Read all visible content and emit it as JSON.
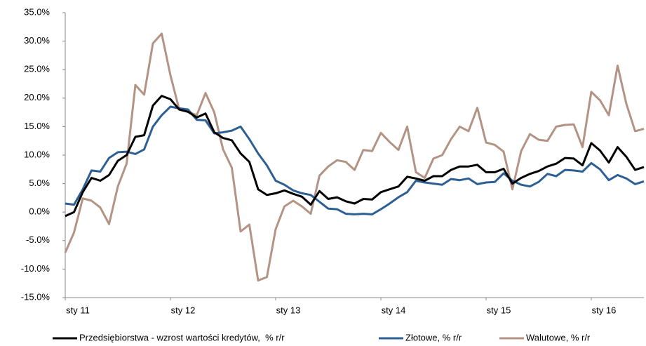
{
  "chart_data": {
    "type": "line",
    "categories": [
      "sty 11",
      null,
      null,
      null,
      null,
      null,
      null,
      null,
      null,
      null,
      null,
      null,
      "sty 12",
      null,
      null,
      null,
      null,
      null,
      null,
      null,
      null,
      null,
      null,
      null,
      "sty 13",
      null,
      null,
      null,
      null,
      null,
      null,
      null,
      null,
      null,
      null,
      null,
      "sty 14",
      null,
      null,
      null,
      null,
      null,
      null,
      null,
      null,
      null,
      null,
      null,
      "sty 15",
      null,
      null,
      null,
      null,
      null,
      null,
      null,
      null,
      null,
      null,
      null,
      "sty 16",
      null,
      null,
      null,
      null,
      null,
      null
    ],
    "series": [
      {
        "name": "Przedsiębiorstwa - wzrost wartości kredytów,  % r/r",
        "color": "#000000",
        "values": [
          -0.7,
          0,
          3.5,
          6,
          5.5,
          6.5,
          9,
          10,
          13.2,
          13.5,
          18.7,
          20.4,
          19.8,
          18,
          17.6,
          16.6,
          17.3,
          14,
          13,
          12.6,
          10.3,
          8.8,
          4,
          3,
          3.3,
          3.8,
          3.2,
          2.7,
          1.3,
          3.7,
          2.3,
          2.6,
          1.9,
          1.5,
          2.3,
          2.2,
          3.5,
          4,
          4.5,
          6.2,
          5.9,
          5.5,
          6.3,
          6.3,
          7.4,
          8,
          8,
          8.3,
          7,
          7,
          7.6,
          5,
          6,
          6.7,
          7.2,
          8,
          8.5,
          9.5,
          9.4,
          8.2,
          12.1,
          10.8,
          8.7,
          11.4,
          9.7,
          7.4,
          7.9
        ]
      },
      {
        "name": "Złotowe, % r/r",
        "color": "#2e5f94",
        "values": [
          1.5,
          1.3,
          4,
          7.3,
          7.1,
          9.5,
          10.5,
          10.6,
          10.2,
          11,
          15,
          17,
          18.5,
          18.2,
          18,
          16.2,
          16.1,
          13.8,
          14,
          14.3,
          15,
          12.8,
          10.3,
          8.2,
          5.5,
          4.8,
          3.8,
          3.3,
          3,
          1.8,
          0.6,
          0.5,
          -0.3,
          -0.4,
          -0.3,
          -0.4,
          0.5,
          1.5,
          2.6,
          3.5,
          5.5,
          5.2,
          5,
          4.8,
          5.8,
          5.6,
          5.9,
          4.9,
          5.2,
          5.3,
          6.8,
          5.5,
          4.8,
          4.5,
          5.3,
          6.7,
          6.3,
          7.4,
          7.3,
          7.1,
          8.6,
          7.5,
          5.6,
          6.5,
          5.9,
          4.9,
          5.4
        ]
      },
      {
        "name": "Walutowe, % r/r",
        "color": "#b39384",
        "values": [
          -7.1,
          -3.6,
          2.4,
          2,
          0.8,
          -2.1,
          4.5,
          8.5,
          22.3,
          20.6,
          29.6,
          31.3,
          24,
          18,
          17.6,
          17,
          20.9,
          17.5,
          11,
          7.8,
          -3.4,
          -2.2,
          -12,
          -11.4,
          -3,
          1,
          2,
          1,
          -0.3,
          6.4,
          8,
          9.1,
          8.8,
          7.4,
          10.9,
          10.7,
          13.9,
          12.3,
          10.9,
          15,
          7,
          6,
          9.4,
          10,
          12.8,
          15,
          14.2,
          18.3,
          12.2,
          11.8,
          10.6,
          4,
          10.7,
          13.7,
          12.7,
          12.5,
          15,
          15.3,
          15.4,
          11.4,
          21.1,
          19.6,
          17,
          25.7,
          19,
          14.2,
          14.6
        ]
      }
    ],
    "ylim": [
      -15,
      35
    ],
    "yticks": [
      {
        "value": -15,
        "label": "-15.0%"
      },
      {
        "value": -10,
        "label": "-10.0%"
      },
      {
        "value": -5,
        "label": "-5.0%"
      },
      {
        "value": 0,
        "label": "0.0%"
      },
      {
        "value": 5,
        "label": "5.0%"
      },
      {
        "value": 10,
        "label": "10.0%"
      },
      {
        "value": 15,
        "label": "15.0%"
      },
      {
        "value": 20,
        "label": "20.0%"
      },
      {
        "value": 25,
        "label": "25.0%"
      },
      {
        "value": 30,
        "label": "30.0%"
      },
      {
        "value": 35,
        "label": "35.0%"
      }
    ],
    "grid": false,
    "legend": "bottom"
  }
}
